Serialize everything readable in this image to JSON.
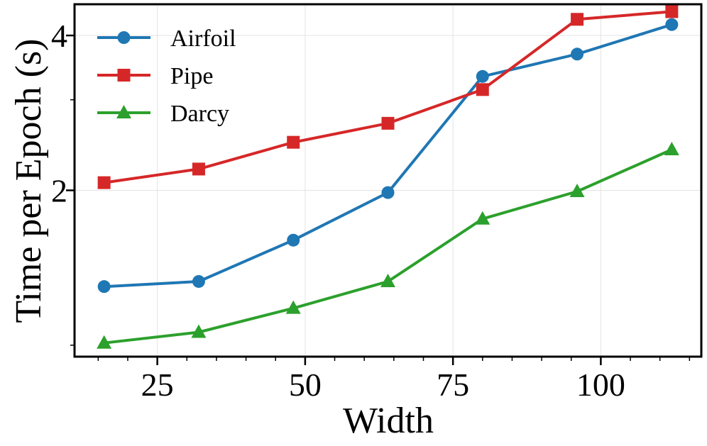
{
  "chart_data": {
    "type": "line",
    "title": "",
    "xlabel": "Width",
    "ylabel": "Time per Epoch (s)",
    "yscale": "log",
    "grid": true,
    "legend_position": "top-left",
    "x": [
      16,
      32,
      48,
      64,
      80,
      96,
      112
    ],
    "xlim": [
      11,
      117
    ],
    "ylim": [
      0.95,
      4.6
    ],
    "xticks": [
      25,
      50,
      75,
      100
    ],
    "xtick_labels": [
      "25",
      "50",
      "75",
      "100"
    ],
    "yticks": [
      2,
      4
    ],
    "ytick_labels": [
      "2",
      "4"
    ],
    "series": [
      {
        "name": "Airfoil",
        "color": "#1f77b4",
        "marker": "circle",
        "values": [
          1.3,
          1.33,
          1.6,
          1.98,
          3.33,
          3.68,
          4.2
        ]
      },
      {
        "name": "Pipe",
        "color": "#d62728",
        "marker": "square",
        "values": [
          2.07,
          2.2,
          2.48,
          2.7,
          3.14,
          4.3,
          4.45
        ]
      },
      {
        "name": "Darcy",
        "color": "#2ca02c",
        "marker": "triangle",
        "values": [
          1.01,
          1.06,
          1.18,
          1.33,
          1.76,
          1.99,
          2.4
        ]
      }
    ]
  }
}
